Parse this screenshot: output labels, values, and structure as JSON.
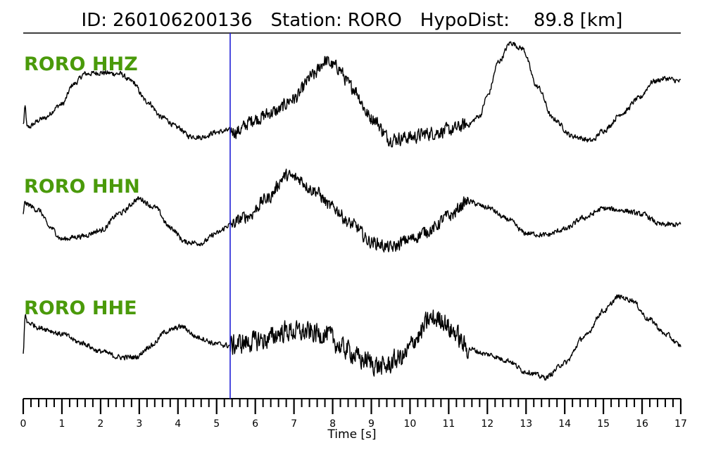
{
  "title": {
    "id_label": "ID:",
    "id_value": "260106200136",
    "station_label": "Station:",
    "station_value": "RORO",
    "hypodist_label": "HypoDist:",
    "hypodist_value": "89.8",
    "hypodist_unit": "[km]"
  },
  "colors": {
    "trace": "#000000",
    "label": "#4a9a0a",
    "marker": "#1f1fd6",
    "axis": "#000000"
  },
  "chart_data": {
    "type": "line",
    "xlabel": "Time [s]",
    "xlim": [
      0,
      17
    ],
    "major_ticks": [
      0,
      1,
      2,
      3,
      4,
      5,
      6,
      7,
      8,
      9,
      10,
      11,
      12,
      13,
      14,
      15,
      16,
      17
    ],
    "minor_tick_step": 0.2,
    "marker_line_x": 5.35,
    "series": [
      {
        "name": "RORO HHZ",
        "noise": 0.05,
        "noise_after_marker": 0.13,
        "points": [
          [
            0,
            -0.6
          ],
          [
            0.05,
            -0.3
          ],
          [
            0.1,
            -0.65
          ],
          [
            0.5,
            -0.5
          ],
          [
            1.0,
            -0.25
          ],
          [
            1.3,
            0.1
          ],
          [
            1.6,
            0.28
          ],
          [
            2.0,
            0.3
          ],
          [
            2.5,
            0.28
          ],
          [
            2.8,
            0.15
          ],
          [
            3.2,
            -0.2
          ],
          [
            3.6,
            -0.48
          ],
          [
            4.0,
            -0.65
          ],
          [
            4.3,
            -0.8
          ],
          [
            4.6,
            -0.82
          ],
          [
            5.0,
            -0.73
          ],
          [
            5.35,
            -0.7
          ],
          [
            5.5,
            -0.72
          ],
          [
            6.0,
            -0.5
          ],
          [
            6.5,
            -0.38
          ],
          [
            7.0,
            -0.15
          ],
          [
            7.5,
            0.25
          ],
          [
            7.8,
            0.5
          ],
          [
            8.1,
            0.4
          ],
          [
            8.5,
            0.05
          ],
          [
            9.0,
            -0.48
          ],
          [
            9.5,
            -0.85
          ],
          [
            10.0,
            -0.82
          ],
          [
            10.5,
            -0.75
          ],
          [
            11.0,
            -0.7
          ],
          [
            11.5,
            -0.6
          ],
          [
            11.8,
            -0.45
          ],
          [
            12.0,
            -0.1
          ],
          [
            12.3,
            0.5
          ],
          [
            12.6,
            0.82
          ],
          [
            12.9,
            0.72
          ],
          [
            13.3,
            0.05
          ],
          [
            13.7,
            -0.5
          ],
          [
            14.2,
            -0.8
          ],
          [
            14.7,
            -0.88
          ],
          [
            15.0,
            -0.7
          ],
          [
            15.5,
            -0.4
          ],
          [
            15.9,
            -0.15
          ],
          [
            16.3,
            0.15
          ],
          [
            16.6,
            0.2
          ],
          [
            17.0,
            0.15
          ]
        ]
      },
      {
        "name": "RORO HHN",
        "noise": 0.05,
        "noise_after_marker": 0.12,
        "points": [
          [
            0,
            -0.1
          ],
          [
            0.05,
            0.1
          ],
          [
            0.1,
            0.05
          ],
          [
            0.4,
            -0.05
          ],
          [
            0.7,
            -0.35
          ],
          [
            1.0,
            -0.55
          ],
          [
            1.5,
            -0.5
          ],
          [
            2.0,
            -0.4
          ],
          [
            2.5,
            -0.1
          ],
          [
            3.0,
            0.15
          ],
          [
            3.4,
            0.0
          ],
          [
            3.8,
            -0.35
          ],
          [
            4.2,
            -0.6
          ],
          [
            4.6,
            -0.62
          ],
          [
            5.0,
            -0.45
          ],
          [
            5.35,
            -0.3
          ],
          [
            5.8,
            -0.15
          ],
          [
            6.3,
            0.15
          ],
          [
            6.8,
            0.55
          ],
          [
            7.1,
            0.5
          ],
          [
            7.5,
            0.3
          ],
          [
            8.0,
            0.0
          ],
          [
            8.5,
            -0.3
          ],
          [
            9.0,
            -0.6
          ],
          [
            9.5,
            -0.7
          ],
          [
            10.0,
            -0.55
          ],
          [
            10.5,
            -0.4
          ],
          [
            11.0,
            -0.15
          ],
          [
            11.5,
            0.1
          ],
          [
            12.0,
            0.0
          ],
          [
            12.5,
            -0.2
          ],
          [
            13.0,
            -0.45
          ],
          [
            13.5,
            -0.48
          ],
          [
            14.0,
            -0.38
          ],
          [
            14.5,
            -0.18
          ],
          [
            15.0,
            -0.02
          ],
          [
            15.5,
            -0.05
          ],
          [
            16.0,
            -0.12
          ],
          [
            16.5,
            -0.3
          ],
          [
            17.0,
            -0.3
          ]
        ]
      },
      {
        "name": "RORO HHE",
        "noise": 0.05,
        "noise_after_marker": 0.2,
        "points": [
          [
            0,
            -0.5
          ],
          [
            0.05,
            0.2
          ],
          [
            0.1,
            0.05
          ],
          [
            0.5,
            -0.05
          ],
          [
            1.0,
            -0.15
          ],
          [
            1.5,
            -0.3
          ],
          [
            2.0,
            -0.45
          ],
          [
            2.5,
            -0.55
          ],
          [
            2.9,
            -0.55
          ],
          [
            3.3,
            -0.35
          ],
          [
            3.7,
            -0.1
          ],
          [
            4.1,
            -0.02
          ],
          [
            4.5,
            -0.2
          ],
          [
            5.0,
            -0.32
          ],
          [
            5.35,
            -0.35
          ],
          [
            5.7,
            -0.3
          ],
          [
            6.2,
            -0.25
          ],
          [
            6.8,
            -0.1
          ],
          [
            7.3,
            -0.12
          ],
          [
            7.8,
            -0.15
          ],
          [
            8.3,
            -0.4
          ],
          [
            8.8,
            -0.6
          ],
          [
            9.3,
            -0.72
          ],
          [
            9.8,
            -0.55
          ],
          [
            10.2,
            -0.2
          ],
          [
            10.5,
            0.1
          ],
          [
            10.8,
            0.12
          ],
          [
            11.1,
            -0.1
          ],
          [
            11.5,
            -0.4
          ],
          [
            12.0,
            -0.5
          ],
          [
            12.5,
            -0.6
          ],
          [
            13.0,
            -0.8
          ],
          [
            13.5,
            -0.9
          ],
          [
            14.0,
            -0.65
          ],
          [
            14.5,
            -0.2
          ],
          [
            15.0,
            0.25
          ],
          [
            15.4,
            0.5
          ],
          [
            15.7,
            0.45
          ],
          [
            16.2,
            0.1
          ],
          [
            16.6,
            -0.15
          ],
          [
            17.0,
            -0.35
          ]
        ]
      }
    ]
  }
}
